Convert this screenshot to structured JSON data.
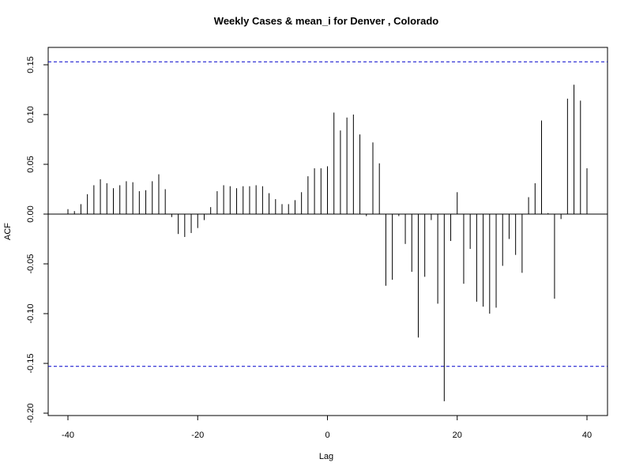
{
  "chart_data": {
    "type": "bar",
    "title": "Weekly Cases & mean_i for Denver , Colorado",
    "xlabel": "Lag",
    "ylabel": "ACF",
    "xlim": [
      -42,
      42
    ],
    "ylim": [
      -0.2,
      0.16
    ],
    "x_ticks": [
      {
        "value": -40,
        "label": "-40"
      },
      {
        "value": -20,
        "label": "-20"
      },
      {
        "value": 0,
        "label": "0"
      },
      {
        "value": 20,
        "label": "20"
      },
      {
        "value": 40,
        "label": "40"
      }
    ],
    "y_ticks": [
      {
        "value": -0.2,
        "label": "-0.20"
      },
      {
        "value": -0.15,
        "label": "-0.15"
      },
      {
        "value": -0.1,
        "label": "-0.10"
      },
      {
        "value": -0.05,
        "label": "-0.05"
      },
      {
        "value": 0.0,
        "label": "0.00"
      },
      {
        "value": 0.05,
        "label": "0.05"
      },
      {
        "value": 0.1,
        "label": "0.10"
      },
      {
        "value": 0.15,
        "label": "0.15"
      }
    ],
    "confidence_bounds": [
      0.153,
      -0.153
    ],
    "confidence_color": "#0000cc",
    "bar_color": "#000000",
    "series": [
      {
        "x": [
          -40,
          -39,
          -38,
          -37,
          -36,
          -35,
          -34,
          -33,
          -32,
          -31,
          -30,
          -29,
          -28,
          -27,
          -26,
          -25,
          -24,
          -23,
          -22,
          -21,
          -20,
          -19,
          -18,
          -17,
          -16,
          -15,
          -14,
          -13,
          -12,
          -11,
          -10,
          -9,
          -8,
          -7,
          -6,
          -5,
          -4,
          -3,
          -2,
          -1,
          0,
          1,
          2,
          3,
          4,
          5,
          6,
          7,
          8,
          9,
          10,
          11,
          12,
          13,
          14,
          15,
          16,
          17,
          18,
          19,
          20,
          21,
          22,
          23,
          24,
          25,
          26,
          27,
          28,
          29,
          30,
          31,
          32,
          33,
          34,
          35,
          36,
          37,
          38,
          39,
          40
        ],
        "values": [
          0.005,
          0.003,
          0.01,
          0.02,
          0.029,
          0.035,
          0.031,
          0.026,
          0.029,
          0.033,
          0.032,
          0.023,
          0.024,
          0.033,
          0.04,
          0.025,
          -0.003,
          -0.02,
          -0.023,
          -0.019,
          -0.014,
          -0.006,
          0.007,
          0.023,
          0.029,
          0.028,
          0.026,
          0.028,
          0.028,
          0.029,
          0.028,
          0.021,
          0.015,
          0.01,
          0.01,
          0.014,
          0.022,
          0.038,
          0.046,
          0.046,
          0.048,
          0.102,
          0.084,
          0.097,
          0.1,
          0.08,
          -0.002,
          0.072,
          0.051,
          -0.072,
          -0.066,
          -0.002,
          -0.03,
          -0.058,
          -0.124,
          -0.063,
          -0.006,
          -0.09,
          -0.188,
          -0.027,
          0.022,
          -0.07,
          -0.035,
          -0.088,
          -0.093,
          -0.1,
          -0.094,
          -0.052,
          -0.025,
          -0.041,
          -0.059,
          0.017,
          0.031,
          0.094,
          0.001,
          -0.085,
          -0.005,
          0.116,
          0.13,
          0.114,
          0.046
        ]
      }
    ]
  }
}
